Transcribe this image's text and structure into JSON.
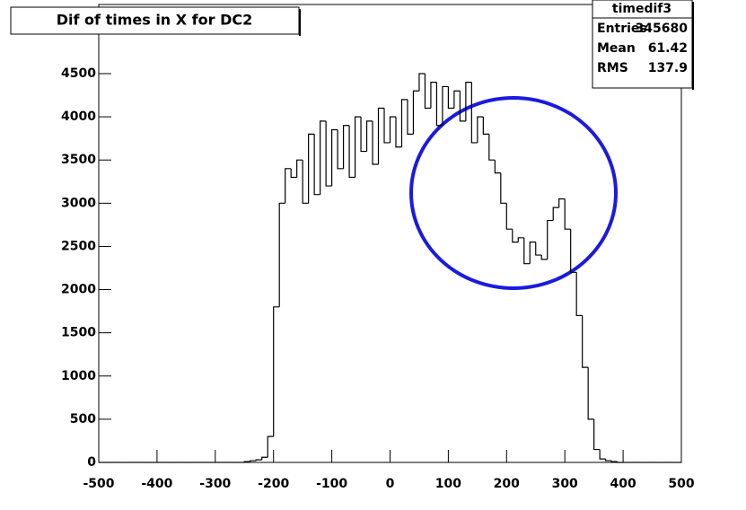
{
  "chart_data": {
    "type": "histogram",
    "title": "Dif of times in X for DC2",
    "bins": [
      -500,
      -490,
      -480,
      -470,
      -460,
      -450,
      -440,
      -430,
      -420,
      -410,
      -400,
      -390,
      -380,
      -370,
      -360,
      -350,
      -340,
      -330,
      -320,
      -310,
      -300,
      -290,
      -280,
      -270,
      -260,
      -250,
      -240,
      -230,
      -220,
      -210,
      -200,
      -190,
      -180,
      -170,
      -160,
      -150,
      -140,
      -130,
      -120,
      -110,
      -100,
      -90,
      -80,
      -70,
      -60,
      -50,
      -40,
      -30,
      -20,
      -10,
      0,
      10,
      20,
      30,
      40,
      50,
      60,
      70,
      80,
      90,
      100,
      110,
      120,
      130,
      140,
      150,
      160,
      170,
      180,
      190,
      200,
      210,
      220,
      230,
      240,
      250,
      260,
      270,
      280,
      290,
      300,
      310,
      320,
      330,
      340,
      350,
      360,
      370,
      380,
      390,
      400,
      410,
      420,
      430,
      440,
      450,
      460,
      470,
      480,
      490,
      500
    ],
    "values": [
      0,
      0,
      0,
      0,
      0,
      0,
      0,
      0,
      0,
      0,
      0,
      0,
      0,
      0,
      0,
      0,
      0,
      0,
      0,
      0,
      0,
      0,
      0,
      0,
      0,
      10,
      20,
      30,
      60,
      300,
      1800,
      3000,
      3400,
      3300,
      3500,
      3000,
      3800,
      3100,
      3950,
      3200,
      3850,
      3400,
      3900,
      3300,
      4000,
      3600,
      3950,
      3450,
      4100,
      3700,
      4000,
      3650,
      4200,
      3800,
      4300,
      4500,
      4100,
      4400,
      3900,
      4350,
      4100,
      4300,
      3950,
      4400,
      3700,
      4000,
      3800,
      3500,
      3350,
      3000,
      2700,
      2550,
      2600,
      2300,
      2550,
      2400,
      2350,
      2800,
      2950,
      3050,
      2700,
      2200,
      1700,
      1100,
      500,
      150,
      40,
      20,
      10,
      0,
      0,
      0,
      0,
      0,
      0,
      0,
      0,
      0,
      0,
      0,
      0
    ],
    "color": "#000000",
    "xlim": [
      -500,
      500
    ],
    "xticks": [
      -500,
      -400,
      -300,
      -200,
      -100,
      0,
      100,
      200,
      300,
      400,
      500
    ],
    "ylim": [
      0,
      5300
    ],
    "yticks": [
      0,
      500,
      1000,
      1500,
      2000,
      2500,
      3000,
      3500,
      4000,
      4500
    ],
    "stats": {
      "name": "timedif3",
      "rows": [
        {
          "label": "Entries",
          "value": 345680
        },
        {
          "label": "Mean",
          "value": 61.42
        },
        {
          "label": "RMS",
          "value": 137.9
        }
      ]
    }
  }
}
